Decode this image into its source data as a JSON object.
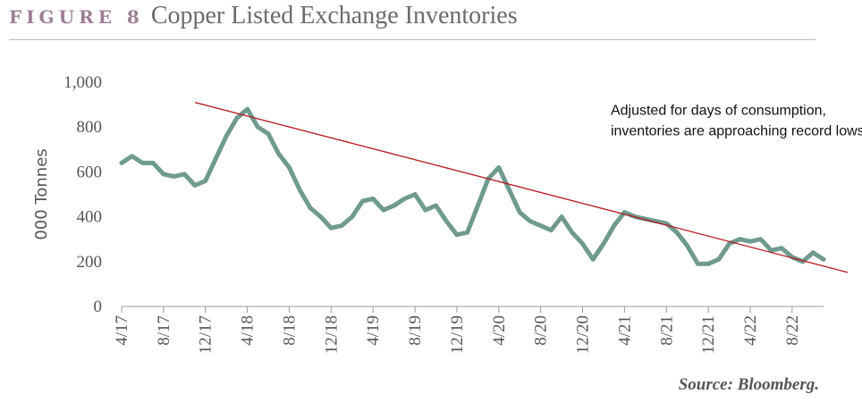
{
  "header": {
    "figure_label": "FIGURE 8",
    "title": "Copper Listed Exchange Inventories"
  },
  "source": "Source: Bloomberg.",
  "colors": {
    "series": "#6f9a90",
    "trendline": "#b5191d",
    "axis_text": "#555555",
    "figure_label": "#9b7f93"
  },
  "chart_data": {
    "type": "line",
    "title": "Copper Listed Exchange Inventories",
    "ylabel": "000 Tonnes",
    "xlabel": "",
    "ylim": [
      0,
      1000
    ],
    "yticks": [
      0,
      200,
      400,
      600,
      800,
      1000
    ],
    "ytick_labels": [
      "0",
      "200",
      "400",
      "600",
      "800",
      "1,000"
    ],
    "xlim": [
      "2017-04",
      "2022-11"
    ],
    "xticks": [
      "2017-04",
      "2017-08",
      "2017-12",
      "2018-04",
      "2018-08",
      "2018-12",
      "2019-04",
      "2019-08",
      "2019-12",
      "2020-04",
      "2020-08",
      "2020-12",
      "2021-04",
      "2021-08",
      "2021-12",
      "2022-04",
      "2022-08"
    ],
    "xtick_labels": [
      "4/17",
      "8/17",
      "12/17",
      "4/18",
      "8/18",
      "12/18",
      "4/19",
      "8/19",
      "12/19",
      "4/20",
      "8/20",
      "12/20",
      "4/21",
      "8/21",
      "12/21",
      "4/22",
      "8/22"
    ],
    "grid": false,
    "series": [
      {
        "x": [
          "2017-04",
          "2017-05",
          "2017-06",
          "2017-07",
          "2017-08",
          "2017-09",
          "2017-10",
          "2017-11",
          "2017-12",
          "2018-01",
          "2018-02",
          "2018-03",
          "2018-04",
          "2018-05",
          "2018-06",
          "2018-07",
          "2018-08",
          "2018-09",
          "2018-10",
          "2018-11",
          "2018-12",
          "2019-01",
          "2019-02",
          "2019-03",
          "2019-04",
          "2019-05",
          "2019-06",
          "2019-07",
          "2019-08",
          "2019-09",
          "2019-10",
          "2019-11",
          "2019-12",
          "2020-01",
          "2020-02",
          "2020-03",
          "2020-04",
          "2020-05",
          "2020-06",
          "2020-07",
          "2020-08",
          "2020-09",
          "2020-10",
          "2020-11",
          "2020-12",
          "2021-01",
          "2021-02",
          "2021-03",
          "2021-04",
          "2021-05",
          "2021-06",
          "2021-07",
          "2021-08",
          "2021-09",
          "2021-10",
          "2021-11",
          "2021-12",
          "2022-01",
          "2022-02",
          "2022-03",
          "2022-04",
          "2022-05",
          "2022-06",
          "2022-07",
          "2022-08",
          "2022-09",
          "2022-10",
          "2022-11"
        ],
        "values": [
          640,
          670,
          640,
          640,
          590,
          580,
          590,
          540,
          560,
          660,
          760,
          840,
          880,
          800,
          770,
          680,
          620,
          520,
          440,
          400,
          350,
          360,
          400,
          470,
          480,
          430,
          450,
          480,
          500,
          430,
          450,
          380,
          320,
          330,
          450,
          570,
          620,
          520,
          420,
          380,
          360,
          340,
          400,
          330,
          280,
          210,
          280,
          360,
          420,
          400,
          390,
          380,
          370,
          330,
          270,
          190,
          190,
          210,
          280,
          300,
          290,
          300,
          250,
          260,
          220,
          200,
          240,
          210
        ]
      }
    ],
    "trendline": {
      "x": [
        "2017-11",
        "2022-11"
      ],
      "y": [
        910,
        180
      ]
    },
    "annotations": [
      {
        "text": "Adjusted for days of consumption,\ninventories are approaching record lows.",
        "x": "2021-02",
        "y": 855
      }
    ]
  }
}
